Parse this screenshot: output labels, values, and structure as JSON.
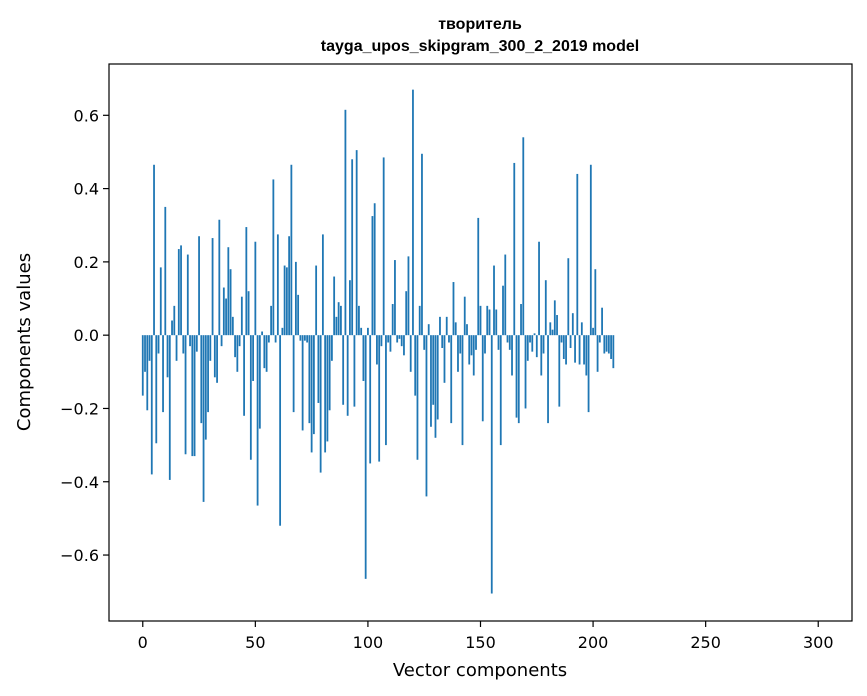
{
  "chart_data": {
    "type": "bar",
    "title_line1": "творитель",
    "title_line2": "tayga_upos_skipgram_300_2_2019 model",
    "xlabel": "Vector components",
    "ylabel": "Components values",
    "xlim": [
      -15,
      315
    ],
    "ylim": [
      -0.78,
      0.74
    ],
    "xticks": [
      0,
      50,
      100,
      150,
      200,
      250,
      300
    ],
    "xtick_labels": [
      "0",
      "50",
      "100",
      "150",
      "200",
      "250",
      "300"
    ],
    "yticks": [
      -0.6,
      -0.4,
      -0.2,
      0.0,
      0.2,
      0.4,
      0.6
    ],
    "ytick_labels": [
      "−0.6",
      "−0.4",
      "−0.2",
      "0.0",
      "0.2",
      "0.4",
      "0.6"
    ],
    "grid": false,
    "bar_color": "#1f77b4",
    "x_start": 0,
    "values": [
      -0.165,
      -0.1,
      -0.205,
      -0.07,
      -0.38,
      0.465,
      -0.295,
      -0.05,
      0.185,
      -0.21,
      0.35,
      -0.115,
      -0.395,
      0.04,
      0.08,
      -0.07,
      0.235,
      0.245,
      -0.05,
      -0.325,
      0.22,
      -0.03,
      -0.33,
      -0.33,
      -0.045,
      0.27,
      -0.24,
      -0.455,
      -0.285,
      -0.21,
      -0.07,
      0.265,
      -0.115,
      -0.13,
      0.315,
      -0.03,
      0.13,
      0.1,
      0.24,
      0.18,
      0.05,
      -0.06,
      -0.1,
      -0.03,
      0.105,
      -0.22,
      0.295,
      0.12,
      -0.34,
      -0.125,
      0.255,
      -0.465,
      -0.255,
      0.01,
      -0.09,
      -0.1,
      -0.02,
      0.08,
      0.425,
      -0.02,
      0.275,
      -0.52,
      0.02,
      0.19,
      0.185,
      0.27,
      0.465,
      -0.21,
      0.2,
      0.11,
      -0.015,
      -0.26,
      -0.015,
      -0.02,
      -0.24,
      -0.32,
      -0.27,
      0.19,
      -0.185,
      -0.375,
      0.275,
      -0.32,
      -0.29,
      -0.205,
      -0.07,
      0.16,
      0.05,
      0.09,
      0.08,
      -0.19,
      0.615,
      -0.22,
      0.15,
      0.48,
      -0.195,
      0.505,
      0.08,
      0.02,
      -0.125,
      -0.665,
      0.02,
      -0.35,
      0.325,
      0.36,
      -0.08,
      -0.345,
      -0.03,
      0.485,
      -0.3,
      -0.02,
      -0.045,
      0.085,
      0.205,
      -0.02,
      -0.01,
      -0.03,
      -0.055,
      0.12,
      0.215,
      -0.1,
      0.67,
      -0.165,
      -0.34,
      0.08,
      0.495,
      -0.04,
      -0.44,
      0.03,
      -0.25,
      -0.19,
      -0.28,
      -0.23,
      0.05,
      -0.035,
      -0.13,
      0.05,
      -0.02,
      -0.24,
      0.145,
      0.035,
      -0.1,
      -0.05,
      -0.3,
      0.105,
      0.03,
      -0.08,
      -0.055,
      -0.11,
      -0.04,
      0.32,
      0.08,
      -0.235,
      -0.05,
      0.08,
      0.07,
      -0.705,
      0.19,
      0.07,
      -0.04,
      -0.3,
      0.135,
      0.22,
      -0.02,
      -0.04,
      -0.11,
      0.47,
      -0.225,
      -0.24,
      0.085,
      0.54,
      -0.2,
      -0.07,
      -0.02,
      -0.045,
      0.005,
      -0.06,
      0.255,
      -0.11,
      -0.05,
      0.15,
      -0.24,
      0.035,
      0.015,
      0.095,
      0.055,
      -0.195,
      -0.02,
      -0.065,
      -0.08,
      0.21,
      -0.035,
      0.06,
      -0.075,
      0.44,
      -0.08,
      0.035,
      -0.08,
      -0.11,
      -0.21,
      0.465,
      0.02,
      0.18,
      -0.1,
      -0.02,
      0.075,
      -0.05,
      -0.045,
      -0.05,
      -0.065,
      -0.09
    ]
  }
}
